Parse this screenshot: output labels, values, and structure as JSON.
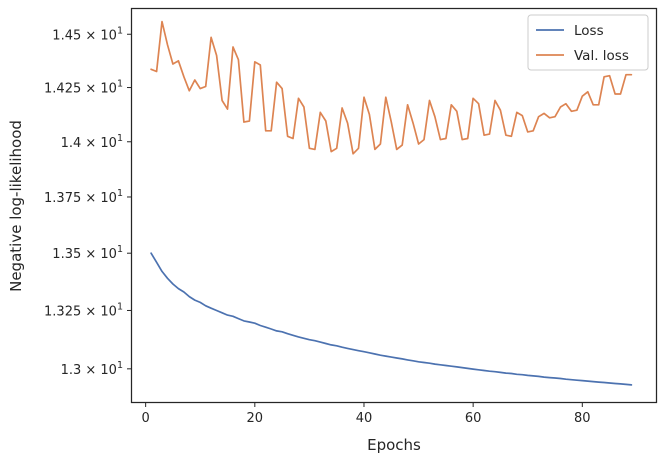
{
  "chart_data": {
    "type": "line",
    "xlabel": "Epochs",
    "ylabel": "Negative log-likelihood",
    "xlim": [
      -2.5,
      93.5
    ],
    "ylim": [
      12.86,
      14.62
    ],
    "x_ticks": [
      0,
      20,
      40,
      60,
      80
    ],
    "y_scale": "log",
    "y_ticks": [
      {
        "value": 13.0,
        "mantissa": "1.3",
        "exponent": "1"
      },
      {
        "value": 13.25,
        "mantissa": "1.325",
        "exponent": "1"
      },
      {
        "value": 13.5,
        "mantissa": "1.35",
        "exponent": "1"
      },
      {
        "value": 13.75,
        "mantissa": "1.375",
        "exponent": "1"
      },
      {
        "value": 14.0,
        "mantissa": "1.4",
        "exponent": "1"
      },
      {
        "value": 14.25,
        "mantissa": "1.425",
        "exponent": "1"
      },
      {
        "value": 14.5,
        "mantissa": "1.45",
        "exponent": "1"
      }
    ],
    "grid": false,
    "legend_position": "top-right",
    "series": [
      {
        "name": "Loss",
        "color": "#4c72b0",
        "x": [
          1,
          2,
          3,
          4,
          5,
          6,
          7,
          8,
          9,
          10,
          11,
          12,
          13,
          14,
          15,
          16,
          17,
          18,
          19,
          20,
          21,
          22,
          23,
          24,
          25,
          26,
          27,
          28,
          29,
          30,
          31,
          32,
          33,
          34,
          35,
          36,
          37,
          38,
          39,
          40,
          41,
          42,
          43,
          44,
          45,
          46,
          47,
          48,
          49,
          50,
          51,
          52,
          53,
          54,
          55,
          56,
          57,
          58,
          59,
          60,
          61,
          62,
          63,
          64,
          65,
          66,
          67,
          68,
          69,
          70,
          71,
          72,
          73,
          74,
          75,
          76,
          77,
          78,
          79,
          80,
          81,
          82,
          83,
          84,
          85,
          86,
          87,
          88,
          89
        ],
        "y": [
          13.5,
          13.46,
          13.42,
          13.39,
          13.365,
          13.345,
          13.33,
          13.31,
          13.295,
          13.285,
          13.27,
          13.26,
          13.25,
          13.24,
          13.23,
          13.225,
          13.215,
          13.205,
          13.2,
          13.195,
          13.185,
          13.178,
          13.17,
          13.162,
          13.158,
          13.15,
          13.143,
          13.136,
          13.13,
          13.124,
          13.12,
          13.114,
          13.108,
          13.102,
          13.098,
          13.092,
          13.087,
          13.082,
          13.077,
          13.073,
          13.068,
          13.063,
          13.058,
          13.054,
          13.05,
          13.046,
          13.042,
          13.038,
          13.034,
          13.03,
          13.027,
          13.024,
          13.02,
          13.017,
          13.014,
          13.011,
          13.008,
          13.005,
          13.002,
          12.999,
          12.996,
          12.993,
          12.99,
          12.988,
          12.985,
          12.982,
          12.98,
          12.977,
          12.975,
          12.972,
          12.97,
          12.968,
          12.965,
          12.963,
          12.961,
          12.959,
          12.956,
          12.954,
          12.952,
          12.95,
          12.948,
          12.946,
          12.944,
          12.942,
          12.94,
          12.938,
          12.936,
          12.934,
          12.932
        ]
      },
      {
        "name": "Val. loss",
        "color": "#dd8452",
        "x": [
          1,
          2,
          3,
          4,
          5,
          6,
          7,
          8,
          9,
          10,
          11,
          12,
          13,
          14,
          15,
          16,
          17,
          18,
          19,
          20,
          21,
          22,
          23,
          24,
          25,
          26,
          27,
          28,
          29,
          30,
          31,
          32,
          33,
          34,
          35,
          36,
          37,
          38,
          39,
          40,
          41,
          42,
          43,
          44,
          45,
          46,
          47,
          48,
          49,
          50,
          51,
          52,
          53,
          54,
          55,
          56,
          57,
          58,
          59,
          60,
          61,
          62,
          63,
          64,
          65,
          66,
          67,
          68,
          69,
          70,
          71,
          72,
          73,
          74,
          75,
          76,
          77,
          78,
          79,
          80,
          81,
          82,
          83,
          84,
          85,
          86,
          87,
          88,
          89
        ],
        "y": [
          14.335,
          14.325,
          14.56,
          14.45,
          14.36,
          14.375,
          14.3,
          14.235,
          14.285,
          14.245,
          14.255,
          14.485,
          14.4,
          14.19,
          14.15,
          14.44,
          14.38,
          14.09,
          14.095,
          14.37,
          14.355,
          14.05,
          14.05,
          14.275,
          14.245,
          14.025,
          14.015,
          14.2,
          14.16,
          13.97,
          13.965,
          14.135,
          14.095,
          13.955,
          13.97,
          14.155,
          14.085,
          13.945,
          13.97,
          14.205,
          14.125,
          13.965,
          13.99,
          14.205,
          14.09,
          13.965,
          13.985,
          14.17,
          14.085,
          13.99,
          14.01,
          14.19,
          14.115,
          14.01,
          14.015,
          14.17,
          14.14,
          14.01,
          14.015,
          14.2,
          14.175,
          14.03,
          14.035,
          14.19,
          14.145,
          14.03,
          14.025,
          14.135,
          14.12,
          14.045,
          14.05,
          14.115,
          14.13,
          14.11,
          14.115,
          14.16,
          14.175,
          14.14,
          14.145,
          14.21,
          14.23,
          14.17,
          14.17,
          14.3,
          14.305,
          14.22,
          14.22,
          14.31,
          14.31
        ]
      }
    ]
  }
}
